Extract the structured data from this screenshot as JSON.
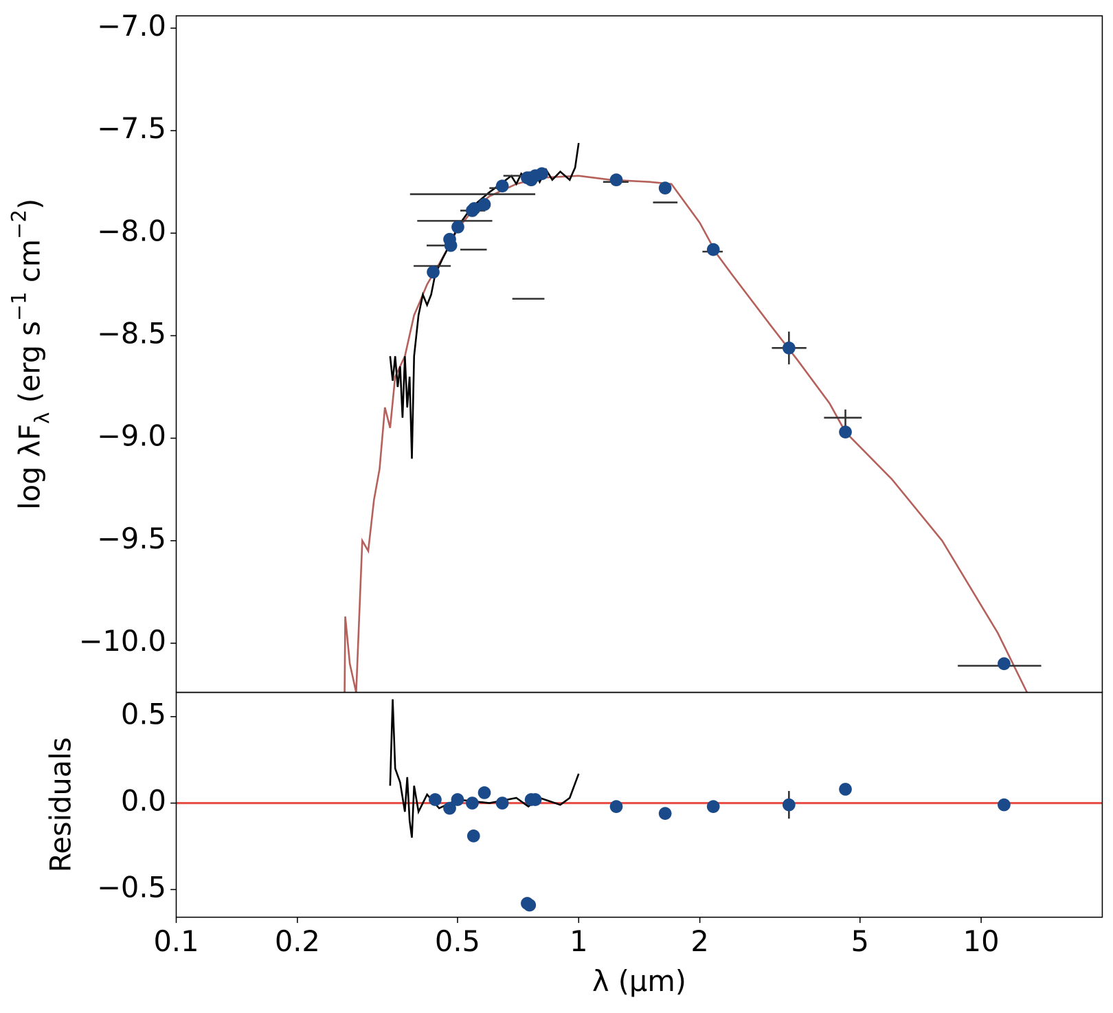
{
  "chart_data": [
    {
      "type": "scatter",
      "log_x": true,
      "ylabel": [
        {
          "text": "log λF"
        },
        {
          "text": "λ",
          "shift": "sub"
        },
        {
          "text": " (erg s"
        },
        {
          "text": "−1",
          "shift": "super"
        },
        {
          "text": " cm"
        },
        {
          "text": "−2",
          "shift": "super"
        },
        {
          "text": ")"
        }
      ],
      "xlim": [
        0.1,
        20
      ],
      "ylim": [
        -10.24,
        -6.94
      ],
      "yticks": [
        {
          "value": -7.0,
          "label": "−7.0"
        },
        {
          "value": -7.5,
          "label": "−7.5"
        },
        {
          "value": -8.0,
          "label": "−8.0"
        },
        {
          "value": -8.5,
          "label": "−8.5"
        },
        {
          "value": -9.0,
          "label": "−9.0"
        },
        {
          "value": -9.5,
          "label": "−9.5"
        },
        {
          "value": -10.0,
          "label": "−10.0"
        }
      ],
      "series": [
        {
          "kind": "line",
          "color": "#b5605a",
          "x": [
            0.262,
            0.263,
            0.27,
            0.28,
            0.29,
            0.3,
            0.31,
            0.32,
            0.33,
            0.34,
            0.35,
            0.37,
            0.39,
            0.4,
            0.42,
            0.45,
            0.48,
            0.5,
            0.55,
            0.6,
            0.7,
            0.8,
            1.0,
            1.2,
            1.5,
            1.7,
            2.0,
            2.2,
            2.4,
            3.0,
            3.5,
            4.2,
            4.6,
            6,
            8,
            11,
            13
          ],
          "values": [
            -10.24,
            -9.87,
            -10.1,
            -10.24,
            -9.5,
            -9.55,
            -9.3,
            -9.15,
            -8.85,
            -8.95,
            -8.7,
            -8.6,
            -8.4,
            -8.35,
            -8.25,
            -8.15,
            -8.05,
            -7.98,
            -7.88,
            -7.82,
            -7.76,
            -7.73,
            -7.72,
            -7.74,
            -7.75,
            -7.76,
            -7.95,
            -8.1,
            -8.2,
            -8.45,
            -8.62,
            -8.83,
            -8.97,
            -9.2,
            -9.5,
            -9.95,
            -10.24
          ]
        },
        {
          "kind": "line",
          "color": "#000000",
          "x": [
            0.34,
            0.345,
            0.35,
            0.355,
            0.36,
            0.365,
            0.37,
            0.375,
            0.38,
            0.385,
            0.39,
            0.4,
            0.41,
            0.42,
            0.43,
            0.44,
            0.46,
            0.48,
            0.5,
            0.53,
            0.56,
            0.6,
            0.65,
            0.68,
            0.7,
            0.72,
            0.75,
            0.78,
            0.8,
            0.83,
            0.86,
            0.9,
            0.95,
            0.98,
            1.0
          ],
          "values": [
            -8.6,
            -8.72,
            -8.6,
            -8.75,
            -8.65,
            -8.9,
            -8.6,
            -8.85,
            -8.7,
            -9.1,
            -8.6,
            -8.4,
            -8.3,
            -8.35,
            -8.3,
            -8.2,
            -8.12,
            -8.05,
            -7.97,
            -7.9,
            -7.85,
            -7.8,
            -7.75,
            -7.72,
            -7.76,
            -7.71,
            -7.75,
            -7.7,
            -7.75,
            -7.69,
            -7.74,
            -7.7,
            -7.74,
            -7.68,
            -7.56
          ]
        },
        {
          "kind": "errorbars",
          "color": "#333333",
          "bars": [
            {
              "x": [
                0.381,
                0.78
              ],
              "y": -7.81
            },
            {
              "x": [
                0.397,
                0.61
              ],
              "y": -7.94
            },
            {
              "x": [
                0.419,
                0.497
              ],
              "y": -8.06
            },
            {
              "x": [
                0.508,
                0.591
              ],
              "y": -8.08
            },
            {
              "x": [
                0.389,
                0.481
              ],
              "y": -8.16
            },
            {
              "x": [
                0.684,
                0.822
              ],
              "y": -8.32
            },
            {
              "x": [
                0.508,
                0.586
              ],
              "y": -7.89
            },
            {
              "x": [
                0.6,
                0.66
              ],
              "y": -7.78
            },
            {
              "x": [
                0.65,
                0.72
              ],
              "y": -7.72
            },
            {
              "x": [
                1.15,
                1.33
              ],
              "y": -7.75
            },
            {
              "x": [
                1.53,
                1.76
              ],
              "y": -7.85
            },
            {
              "x": [
                2.03,
                2.28
              ],
              "y": -8.09
            },
            {
              "x": [
                3.02,
                3.68
              ],
              "y": -8.56
            },
            {
              "x": 3.33,
              "y": [
                -8.64,
                -8.48
              ]
            },
            {
              "x": [
                4.07,
                5.05
              ],
              "y": -8.9
            },
            {
              "x": 4.6,
              "y": [
                -8.94,
                -8.86
              ]
            },
            {
              "x": [
                8.75,
                14.1
              ],
              "y": -10.11
            }
          ]
        },
        {
          "kind": "points",
          "color": "#1a4a8a",
          "x": [
            0.435,
            0.478,
            0.481,
            0.501,
            0.544,
            0.55,
            0.583,
            0.646,
            0.745,
            0.755,
            0.762,
            0.78,
            0.81,
            1.24,
            1.64,
            2.16,
            3.33,
            4.6,
            11.4
          ],
          "values": [
            -8.19,
            -8.03,
            -8.06,
            -7.97,
            -7.89,
            -7.88,
            -7.86,
            -7.77,
            -7.73,
            -7.73,
            -7.74,
            -7.72,
            -7.71,
            -7.74,
            -7.78,
            -8.08,
            -8.56,
            -8.97,
            -10.1
          ]
        }
      ]
    },
    {
      "type": "scatter",
      "log_x": true,
      "ylabel": [
        {
          "text": "Residuals"
        }
      ],
      "xlabel": "λ (μm)",
      "xlim": [
        0.1,
        20
      ],
      "ylim": [
        -0.66,
        0.64
      ],
      "xticks": [
        0.1,
        0.2,
        0.5,
        1,
        2,
        5,
        10
      ],
      "yticks": [
        0.5,
        {
          "value": 0.0,
          "label": "0.0"
        },
        {
          "value": -0.5,
          "label": "−0.5"
        }
      ],
      "hline": 0,
      "hline_color": "#e8504a",
      "series": [
        {
          "kind": "line",
          "color": "#000000",
          "x": [
            0.34,
            0.345,
            0.35,
            0.36,
            0.37,
            0.375,
            0.38,
            0.385,
            0.39,
            0.4,
            0.42,
            0.45,
            0.5,
            0.6,
            0.7,
            0.75,
            0.8,
            0.9,
            0.95,
            1.0
          ],
          "values": [
            0.1,
            0.6,
            0.2,
            0.12,
            -0.05,
            0.15,
            -0.1,
            -0.2,
            0.1,
            -0.05,
            0.05,
            -0.03,
            0.02,
            0.0,
            0.03,
            -0.02,
            0.03,
            -0.01,
            0.03,
            0.17
          ]
        },
        {
          "kind": "errorbars",
          "color": "#333333",
          "bars": [
            {
              "x": 3.33,
              "y": [
                -0.09,
                0.07
              ]
            }
          ]
        },
        {
          "kind": "points",
          "color": "#1a4a8a",
          "x": [
            0.44,
            0.478,
            0.5,
            0.544,
            0.548,
            0.583,
            0.646,
            0.745,
            0.755,
            0.762,
            0.78,
            1.24,
            1.64,
            2.16,
            3.33,
            4.6,
            11.4
          ],
          "values": [
            0.02,
            -0.03,
            0.02,
            0.0,
            -0.19,
            0.06,
            0.0,
            -0.58,
            -0.59,
            0.02,
            0.02,
            -0.02,
            -0.06,
            -0.02,
            -0.01,
            0.08,
            -0.01
          ]
        }
      ]
    }
  ]
}
